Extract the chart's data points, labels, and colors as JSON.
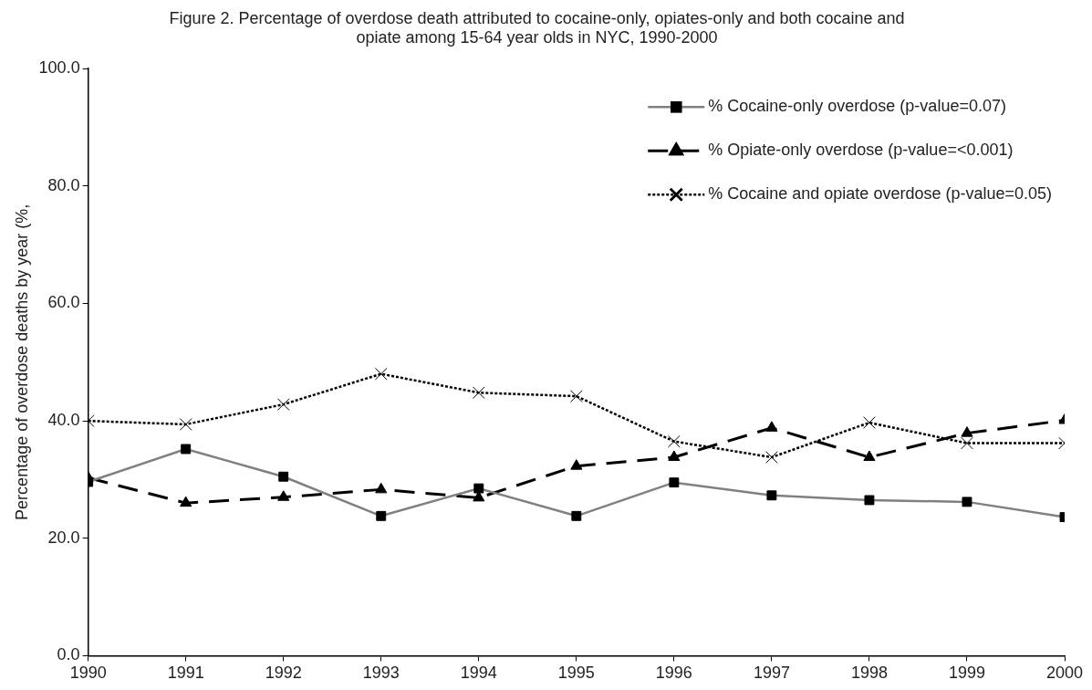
{
  "chart_data": {
    "type": "line",
    "title": [
      "Figure 2. Percentage of overdose death attributed to cocaine-only, opiates-only and both cocaine and",
      "opiate among 15-64 year olds in NYC, 1990-2000"
    ],
    "ylabel": "Percentage of overdose deaths by year (%,",
    "x": [
      1990,
      1991,
      1992,
      1993,
      1994,
      1995,
      1996,
      1997,
      1998,
      1999,
      2000
    ],
    "xlim": [
      1990,
      2000
    ],
    "xticks": [
      1990,
      1991,
      1992,
      1993,
      1994,
      1995,
      1996,
      1997,
      1998,
      1999,
      2000
    ],
    "ylim": [
      0,
      100
    ],
    "yticks": [
      {
        "value": 0,
        "label": "0.0"
      },
      {
        "value": 20,
        "label": "20.0"
      },
      {
        "value": 40,
        "label": "40.0"
      },
      {
        "value": 60,
        "label": "60.0"
      },
      {
        "value": 80,
        "label": "80.0"
      },
      {
        "value": 100,
        "label": "100.0"
      }
    ],
    "grid": false,
    "legend": "top right",
    "series": [
      {
        "name": "% Cocaine-only overdose (p-value=0.07)",
        "color": "#808080",
        "marker": "square",
        "line_style": "solid",
        "values": [
          29.6,
          35.2,
          30.5,
          23.8,
          28.5,
          23.8,
          29.5,
          27.3,
          26.5,
          26.2,
          23.6
        ]
      },
      {
        "name": "% Opiate-only overdose (p-value=<0.001)",
        "color": "#000000",
        "marker": "triangle",
        "line_style": "dashed",
        "values": [
          30.3,
          26.0,
          27.0,
          28.3,
          26.9,
          32.3,
          33.8,
          38.8,
          33.8,
          37.9,
          40.1
        ]
      },
      {
        "name": "% Cocaine and opiate overdose (p-value=0.05)",
        "color": "#000000",
        "marker": "cross",
        "line_style": "dotted",
        "values": [
          40.0,
          39.4,
          42.8,
          48.0,
          44.8,
          44.2,
          36.5,
          33.8,
          39.7,
          36.2,
          36.2
        ]
      }
    ]
  }
}
